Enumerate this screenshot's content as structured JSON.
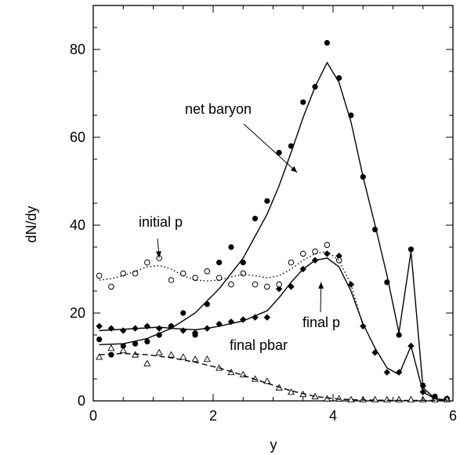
{
  "chart_data": {
    "type": "scatter",
    "xlabel": "y",
    "ylabel": "dN/dy",
    "xlim": [
      0,
      6
    ],
    "ylim": [
      0,
      90
    ],
    "xticks": [
      0,
      2,
      4,
      6
    ],
    "yticks": [
      0,
      20,
      40,
      60,
      80
    ],
    "grid": false,
    "annotations": [
      {
        "text": "net baryon",
        "target": {
          "x": 3.4,
          "y": 52
        }
      },
      {
        "text": "initial p",
        "target": {
          "x": 1.1,
          "y": 32.6
        }
      },
      {
        "text": "final p",
        "target": {
          "x": 3.8,
          "y": 27
        }
      },
      {
        "text": "final pbar",
        "target": null
      }
    ],
    "series": [
      {
        "marker": "filled-circle",
        "line": "none",
        "x": [
          0.1,
          0.3,
          0.5,
          0.7,
          0.9,
          1.1,
          1.3,
          1.5,
          1.7,
          1.9,
          2.1,
          2.3,
          2.5,
          2.7,
          2.9,
          3.1,
          3.3,
          3.5,
          3.7,
          3.9,
          4.1,
          4.3,
          4.5,
          4.7,
          4.9,
          5.1,
          5.3,
          5.5,
          5.7,
          5.9
        ],
        "values": [
          14.0,
          10.5,
          12.5,
          13.0,
          13.5,
          15.0,
          17.0,
          20.0,
          15.0,
          22.0,
          31.5,
          35.0,
          31.5,
          41.5,
          45.5,
          56.5,
          58.0,
          68.0,
          71.5,
          81.5,
          73.5,
          65.0,
          51.0,
          39.0,
          27.0,
          15.0,
          34.5,
          3.5,
          1.0,
          0.5
        ]
      },
      {
        "marker": "filled-diamond",
        "line": "none",
        "x": [
          0.1,
          0.3,
          0.5,
          0.7,
          0.9,
          1.1,
          1.3,
          1.5,
          1.7,
          1.9,
          2.1,
          2.3,
          2.5,
          2.7,
          2.9,
          3.1,
          3.3,
          3.5,
          3.7,
          3.9,
          4.1,
          4.3,
          4.5,
          4.7,
          4.9,
          5.1,
          5.3,
          5.5,
          5.7,
          5.9
        ],
        "values": [
          17.0,
          16.5,
          16.0,
          16.5,
          17.0,
          16.5,
          17.0,
          16.0,
          15.5,
          16.5,
          17.5,
          18.0,
          18.5,
          19.0,
          19.0,
          25.5,
          26.0,
          30.0,
          32.0,
          33.5,
          33.0,
          26.5,
          17.0,
          11.0,
          6.5,
          6.5,
          12.5,
          2.0,
          0.5,
          0.5
        ]
      },
      {
        "marker": "open-circle",
        "line": "none",
        "x": [
          0.1,
          0.3,
          0.5,
          0.7,
          0.9,
          1.1,
          1.3,
          1.5,
          1.7,
          1.9,
          2.1,
          2.3,
          2.5,
          2.7,
          2.9,
          3.1,
          3.3,
          3.5,
          3.7,
          3.9,
          4.1
        ],
        "values": [
          28.5,
          26.0,
          29.0,
          29.0,
          31.5,
          32.5,
          27.5,
          29.0,
          28.0,
          29.5,
          28.0,
          26.5,
          29.0,
          26.5,
          26.0,
          26.5,
          31.5,
          33.5,
          34.0,
          35.5,
          32.0
        ]
      },
      {
        "marker": "open-triangle",
        "line": "none",
        "x": [
          0.1,
          0.3,
          0.5,
          0.7,
          0.9,
          1.1,
          1.3,
          1.5,
          1.7,
          1.9,
          2.1,
          2.3,
          2.5,
          2.7,
          2.9,
          3.1,
          3.3,
          3.5,
          3.7,
          3.9,
          4.1,
          4.3,
          4.5,
          4.7,
          4.9,
          5.1,
          5.3,
          5.5,
          5.7,
          5.9
        ],
        "values": [
          10.0,
          12.0,
          11.5,
          10.5,
          8.5,
          11.0,
          10.5,
          10.0,
          9.5,
          9.5,
          7.5,
          6.5,
          6.0,
          5.0,
          4.5,
          3.0,
          2.0,
          1.5,
          1.0,
          0.5,
          0.5,
          0.3,
          0.3,
          0.3,
          0.3,
          0.3,
          0.3,
          0.3,
          0.3,
          0.3
        ]
      },
      {
        "marker": "none",
        "line": "solid",
        "x": [
          0.1,
          0.5,
          0.9,
          1.3,
          1.7,
          2.1,
          2.5,
          2.9,
          3.1,
          3.3,
          3.5,
          3.7,
          3.9,
          4.1,
          4.3,
          4.5,
          4.7,
          4.9,
          5.1,
          5.3,
          5.5,
          5.7,
          5.9
        ],
        "values": [
          12.8,
          13.0,
          14.2,
          16.5,
          20.0,
          25.5,
          32.5,
          42.5,
          49.0,
          56.5,
          64.5,
          71.5,
          77.0,
          72.5,
          63.5,
          51.0,
          40.0,
          28.5,
          15.5,
          34.0,
          3.0,
          0.5,
          0.2
        ]
      },
      {
        "marker": "none",
        "line": "solid",
        "x": [
          0.1,
          0.5,
          0.9,
          1.1,
          1.3,
          1.7,
          1.9,
          2.1,
          2.5,
          2.9,
          3.1,
          3.3,
          3.5,
          3.7,
          3.9,
          4.1,
          4.3,
          4.5,
          4.7,
          4.9,
          5.1,
          5.3,
          5.5,
          5.7,
          5.9
        ],
        "values": [
          16.0,
          16.3,
          16.6,
          16.8,
          16.5,
          16.2,
          16.5,
          17.0,
          18.2,
          20.5,
          23.5,
          27.0,
          30.0,
          32.0,
          32.5,
          30.5,
          25.0,
          17.5,
          12.0,
          7.5,
          6.0,
          12.5,
          2.0,
          0.5,
          0.2
        ]
      },
      {
        "marker": "none",
        "line": "dotted",
        "x": [
          0.1,
          0.3,
          0.5,
          0.7,
          0.9,
          1.1,
          1.3,
          1.5,
          1.7,
          1.9,
          2.1,
          2.3,
          2.5,
          2.7,
          2.9,
          3.1,
          3.3,
          3.5,
          3.7,
          3.9,
          4.1,
          4.3,
          4.5
        ],
        "values": [
          27.5,
          27.8,
          28.5,
          29.5,
          30.5,
          30.8,
          30.0,
          28.5,
          27.5,
          27.3,
          27.5,
          28.2,
          28.8,
          28.5,
          28.0,
          28.5,
          30.0,
          32.0,
          33.5,
          34.0,
          32.0,
          26.5,
          17.0
        ]
      },
      {
        "marker": "none",
        "line": "dashed",
        "x": [
          0.1,
          0.5,
          0.9,
          1.3,
          1.7,
          2.1,
          2.5,
          2.9,
          3.3,
          3.7,
          4.1,
          4.5,
          5.0,
          5.5,
          5.9
        ],
        "values": [
          10.5,
          10.8,
          10.5,
          9.8,
          8.8,
          7.5,
          5.8,
          4.0,
          2.3,
          1.0,
          0.4,
          0.2,
          0.1,
          0.1,
          0.1
        ]
      }
    ]
  }
}
